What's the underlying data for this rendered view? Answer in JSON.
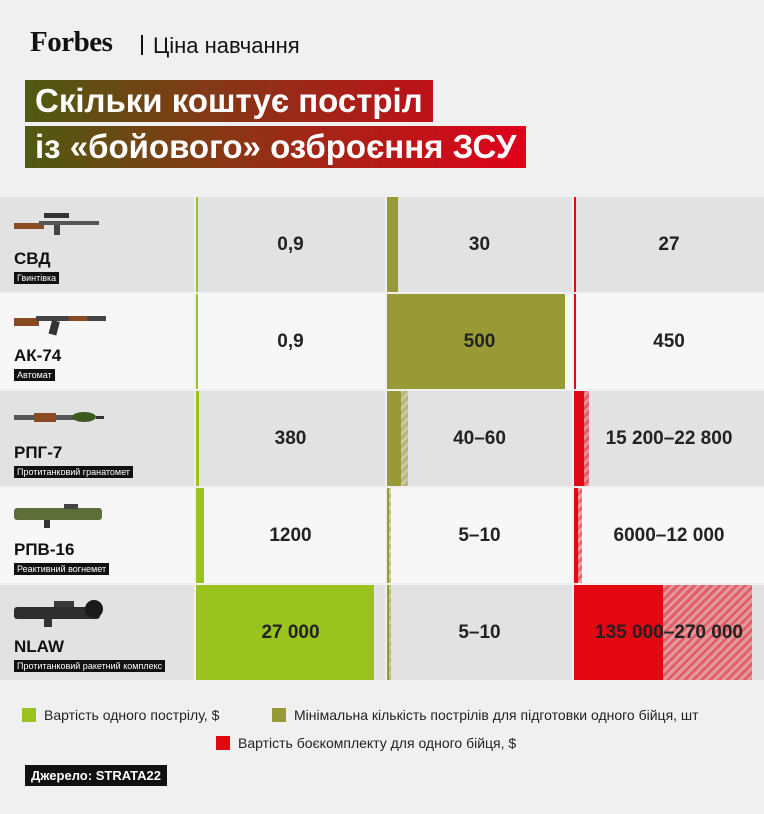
{
  "header": {
    "brand": "Forbes",
    "section": "Ціна навчання"
  },
  "title": [
    "Скільки коштує постріл",
    "із «бойового» озброєння ЗСУ"
  ],
  "columns": [
    {
      "legend": "Вартість одного пострілу, $",
      "color": "#9bc31f"
    },
    {
      "legend": "Мінімальна кількість пострілів для підготовки одного бійця, шт",
      "color": "#979a35"
    },
    {
      "legend": "Вартість боєкомплекту для одного бійця, $",
      "color": "#e30613"
    }
  ],
  "rows": [
    {
      "name": "СВД",
      "type": "Гвинтівка",
      "cells": [
        {
          "label": "0,9",
          "value": 0.9
        },
        {
          "label": "30",
          "value": 30
        },
        {
          "label": "27",
          "value": 27
        }
      ]
    },
    {
      "name": "АК-74",
      "type": "Автомат",
      "cells": [
        {
          "label": "0,9",
          "value": 0.9
        },
        {
          "label": "500",
          "value": 500
        },
        {
          "label": "450",
          "value": 450
        }
      ]
    },
    {
      "name": "РПГ-7",
      "type": "Протитанковий гранатомет",
      "cells": [
        {
          "label": "380",
          "value": 380
        },
        {
          "label": "40–60",
          "min": 40,
          "max": 60
        },
        {
          "label": "15 200–22 800",
          "min": 15200,
          "max": 22800
        }
      ]
    },
    {
      "name": "РПВ-16",
      "type": "Реактивний вогнемет",
      "cells": [
        {
          "label": "1200",
          "value": 1200
        },
        {
          "label": "5–10",
          "min": 5,
          "max": 10
        },
        {
          "label": "6000–12 000",
          "min": 6000,
          "max": 12000
        }
      ]
    },
    {
      "name": "NLAW",
      "type": "Протитанковий ракетний комплекс",
      "cells": [
        {
          "label": "27 000",
          "value": 27000
        },
        {
          "label": "5–10",
          "min": 5,
          "max": 10
        },
        {
          "label": "135 000–270 000",
          "min": 135000,
          "max": 270000
        }
      ]
    }
  ],
  "source": {
    "label": "Джерело:",
    "value": "STRATA22"
  }
}
